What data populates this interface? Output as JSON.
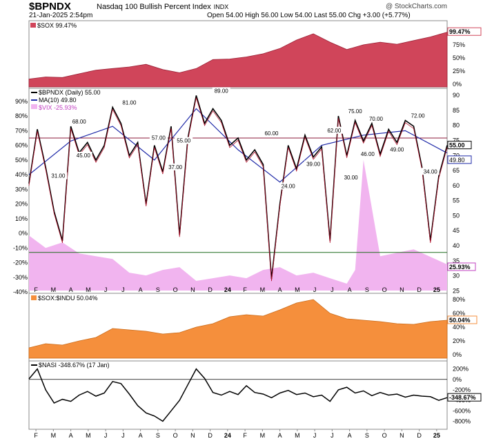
{
  "header": {
    "symbol": "$BPNDX",
    "name": "Nasdaq 100 Bullish Percent Index",
    "exchange": "INDX",
    "date": "21-Jan-2025 2:54pm",
    "ohlc": "Open 54.00   High 56.00   Low 54.00   Last 55.00   Chg +3.00 (+5.77%)",
    "watermark": "@ StockCharts.com"
  },
  "colors": {
    "sox": "#d0455a",
    "bpndx": "#000000",
    "ma": "#1f2aa8",
    "vix": "#f1b4ef",
    "ratio": "#f58f3c",
    "nasi": "#000000",
    "redline": "#8b1a3a",
    "greenline": "#1f6b1f"
  },
  "x_axis": {
    "ticks": [
      "F",
      "M",
      "A",
      "M",
      "J",
      "J",
      "A",
      "S",
      "O",
      "N",
      "D",
      "24",
      "F",
      "M",
      "A",
      "M",
      "J",
      "J",
      "A",
      "S",
      "O",
      "N",
      "D",
      "25"
    ]
  },
  "panels": [
    {
      "id": "sox",
      "legend": "$SOX 99.47%",
      "last_label": "99.47%",
      "yticks": [
        "100%",
        "75%",
        "50%",
        "25%",
        "0%"
      ]
    },
    {
      "id": "bp",
      "legend_bp": "$BPNDX (Daily) 55.00",
      "legend_ma": "MA(10) 49.80",
      "legend_vix": "$VIX -25.93%",
      "left_ticks": [
        "90%",
        "80%",
        "70%",
        "60%",
        "50%",
        "40%",
        "30%",
        "20%",
        "10%",
        "0%",
        "-10%",
        "-20%",
        "-30%",
        "-40%"
      ],
      "right_ticks": [
        "90",
        "85",
        "80",
        "75",
        "70",
        "65",
        "60",
        "55",
        "50",
        "45",
        "40",
        "35",
        "30",
        "25"
      ],
      "last_bp": "55.00",
      "last_ma": "49.80",
      "last_vix": "25.93%",
      "annotations": [
        "68.00",
        "81.00",
        "57.00",
        "55.00",
        "45.00",
        "37.00",
        "31.00",
        "89.00",
        "60.00",
        "62.00",
        "75.00",
        "70.00",
        "72.00",
        "49.00",
        "46.00",
        "39.00",
        "30.00",
        "24.00",
        "34.00"
      ]
    },
    {
      "id": "ratio",
      "legend": "$SOX:$INDU 50.04%",
      "last_label": "50.04%",
      "yticks": [
        "80%",
        "60%",
        "40%",
        "20%",
        "0%"
      ]
    },
    {
      "id": "nasi",
      "legend": "$NASI -348.67% (17 Jan)",
      "last_label": "-348.67%",
      "yticks": [
        "200%",
        "0%",
        "-200%",
        "-400%",
        "-600%",
        "-800%"
      ]
    }
  ],
  "chart_data": [
    {
      "type": "area",
      "name": "$SOX",
      "y_unit": "%",
      "ylim": [
        -5,
        105
      ],
      "x": [
        0,
        4,
        8,
        12,
        16,
        20,
        24,
        28,
        32,
        36,
        40,
        44,
        48,
        52,
        56,
        60,
        64,
        68,
        72,
        76,
        80,
        84,
        88,
        92,
        96,
        100
      ],
      "values": [
        10,
        14,
        13,
        20,
        27,
        30,
        33,
        38,
        28,
        22,
        30,
        47,
        48,
        52,
        58,
        68,
        84,
        96,
        80,
        66,
        75,
        80,
        76,
        83,
        90,
        99
      ]
    },
    {
      "type": "line",
      "name": "$BPNDX",
      "ylim": [
        -44,
        92
      ],
      "x": [
        0,
        2,
        4,
        6,
        8,
        10,
        12,
        14,
        16,
        18,
        20,
        22,
        24,
        26,
        28,
        30,
        32,
        34,
        36,
        38,
        40,
        42,
        44,
        46,
        48,
        50,
        52,
        54,
        56,
        58,
        60,
        62,
        64,
        66,
        68,
        70,
        72,
        74,
        76,
        78,
        80,
        82,
        84,
        86,
        88,
        90,
        92,
        94,
        96,
        98,
        100
      ],
      "values": [
        29,
        66,
        40,
        10,
        -10,
        68,
        50,
        57,
        45,
        55,
        81,
        70,
        48,
        57,
        15,
        55,
        37,
        68,
        -6,
        60,
        89,
        70,
        80,
        72,
        55,
        60,
        45,
        52,
        42,
        -36,
        15,
        55,
        39,
        62,
        47,
        54,
        -10,
        75,
        48,
        72,
        58,
        70,
        49,
        66,
        57,
        72,
        68,
        40,
        -10,
        34,
        55
      ]
    },
    {
      "type": "line",
      "name": "MA(10)",
      "x": [
        0,
        10,
        20,
        30,
        40,
        50,
        60,
        70,
        80,
        90,
        100
      ],
      "values": [
        35,
        58,
        68,
        45,
        80,
        52,
        30,
        55,
        62,
        65,
        49.8
      ]
    },
    {
      "type": "area",
      "name": "$VIX",
      "y_unit": "%",
      "values": [
        -5,
        -14,
        -10,
        -18,
        -20,
        -22,
        -32,
        -34,
        -30,
        -28,
        -38,
        -36,
        -34,
        -36,
        -30,
        -28,
        -34,
        -32,
        -36,
        -40,
        -30,
        50,
        -20,
        -15,
        -26
      ],
      "x": [
        0,
        4,
        8,
        12,
        16,
        20,
        24,
        28,
        32,
        36,
        40,
        44,
        48,
        52,
        56,
        60,
        64,
        68,
        72,
        76,
        78,
        80,
        84,
        92,
        100
      ]
    },
    {
      "type": "area",
      "name": "$SOX:$INDU",
      "y_unit": "%",
      "ylim": [
        -5,
        85
      ],
      "x": [
        0,
        4,
        8,
        12,
        16,
        20,
        24,
        28,
        32,
        36,
        40,
        44,
        48,
        52,
        56,
        60,
        64,
        68,
        72,
        76,
        80,
        84,
        88,
        92,
        96,
        100
      ],
      "values": [
        10,
        16,
        14,
        20,
        25,
        38,
        36,
        34,
        30,
        32,
        40,
        45,
        55,
        58,
        56,
        65,
        75,
        80,
        60,
        52,
        50,
        48,
        45,
        44,
        48,
        50
      ]
    },
    {
      "type": "line",
      "name": "$NASI",
      "y_unit": "%",
      "ylim": [
        -900,
        300
      ],
      "x": [
        0,
        2,
        4,
        6,
        8,
        10,
        12,
        14,
        16,
        18,
        20,
        22,
        24,
        26,
        28,
        30,
        32,
        34,
        36,
        38,
        40,
        42,
        44,
        46,
        48,
        50,
        52,
        54,
        56,
        58,
        60,
        62,
        64,
        66,
        68,
        70,
        72,
        74,
        76,
        78,
        80,
        82,
        84,
        86,
        88,
        90,
        92,
        94,
        96,
        98,
        100
      ],
      "values": [
        10,
        200,
        -200,
        -450,
        -380,
        -420,
        -300,
        -230,
        -320,
        -260,
        -40,
        -80,
        -280,
        -500,
        -640,
        -700,
        -800,
        -600,
        -400,
        -100,
        200,
        20,
        -250,
        -300,
        -230,
        -290,
        -120,
        -250,
        -280,
        -350,
        -260,
        -210,
        -290,
        -260,
        -330,
        -300,
        -420,
        -200,
        -150,
        -260,
        -220,
        -310,
        -250,
        -300,
        -280,
        -340,
        -300,
        -320,
        -330,
        -400,
        -349
      ]
    }
  ]
}
